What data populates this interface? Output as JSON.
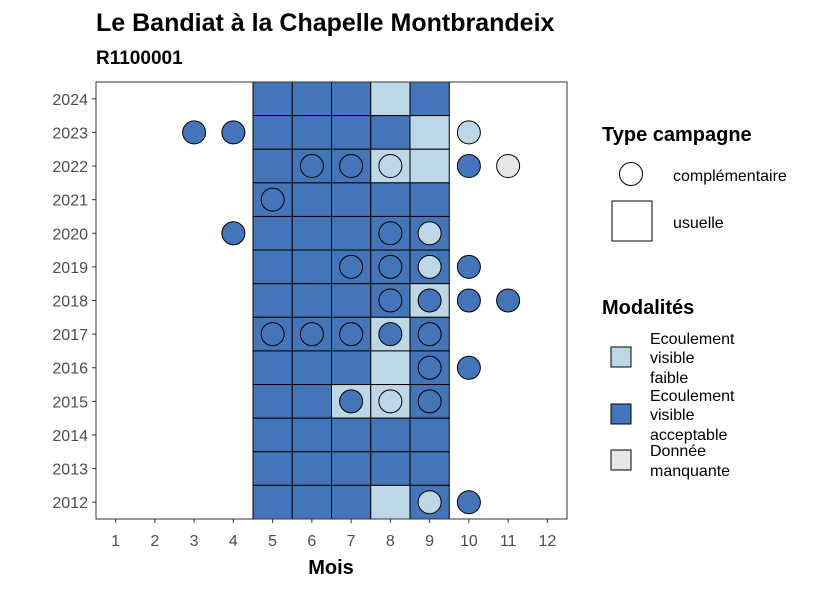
{
  "chart_data": {
    "type": "heatmap",
    "title": "Le Bandiat à la Chapelle Montbrandeix",
    "subtitle": "R1100001",
    "xlabel": "Mois",
    "x_ticks": [
      "1",
      "2",
      "3",
      "4",
      "5",
      "6",
      "7",
      "8",
      "9",
      "10",
      "11",
      "12"
    ],
    "y_ticks": [
      "2012",
      "2013",
      "2014",
      "2015",
      "2016",
      "2017",
      "2018",
      "2019",
      "2020",
      "2021",
      "2022",
      "2023",
      "2024"
    ],
    "xlim": [
      0.5,
      12.5
    ],
    "ylim": [
      2011.5,
      2024.5
    ],
    "colors": {
      "faible": "#bdd7e7",
      "acceptable": "#4575b9",
      "manquante": "#e6e6e6",
      "border": "#000000"
    },
    "legend": {
      "type_title": "Type campagne",
      "type_items": [
        {
          "shape": "circle",
          "label": "complémentaire"
        },
        {
          "shape": "square",
          "label": "usuelle"
        }
      ],
      "modalites_title": "Modalités",
      "modalites_items": [
        {
          "key": "faible",
          "lines": [
            "Ecoulement",
            "visible",
            "faible"
          ]
        },
        {
          "key": "acceptable",
          "lines": [
            "Ecoulement",
            "visible",
            "acceptable"
          ]
        },
        {
          "key": "manquante",
          "lines": [
            "Donnée",
            "manquante"
          ]
        }
      ]
    },
    "usuelle": [
      {
        "year": 2024,
        "month": 5,
        "value": "acceptable"
      },
      {
        "year": 2024,
        "month": 6,
        "value": "acceptable"
      },
      {
        "year": 2024,
        "month": 7,
        "value": "acceptable"
      },
      {
        "year": 2024,
        "month": 8,
        "value": "faible"
      },
      {
        "year": 2024,
        "month": 9,
        "value": "acceptable"
      },
      {
        "year": 2023,
        "month": 5,
        "value": "acceptable"
      },
      {
        "year": 2023,
        "month": 6,
        "value": "acceptable"
      },
      {
        "year": 2023,
        "month": 7,
        "value": "acceptable"
      },
      {
        "year": 2023,
        "month": 8,
        "value": "acceptable"
      },
      {
        "year": 2023,
        "month": 9,
        "value": "faible"
      },
      {
        "year": 2022,
        "month": 5,
        "value": "acceptable"
      },
      {
        "year": 2022,
        "month": 6,
        "value": "acceptable"
      },
      {
        "year": 2022,
        "month": 7,
        "value": "acceptable"
      },
      {
        "year": 2022,
        "month": 8,
        "value": "faible"
      },
      {
        "year": 2022,
        "month": 9,
        "value": "faible"
      },
      {
        "year": 2021,
        "month": 5,
        "value": "acceptable"
      },
      {
        "year": 2021,
        "month": 6,
        "value": "acceptable"
      },
      {
        "year": 2021,
        "month": 7,
        "value": "acceptable"
      },
      {
        "year": 2021,
        "month": 8,
        "value": "acceptable"
      },
      {
        "year": 2021,
        "month": 9,
        "value": "acceptable"
      },
      {
        "year": 2020,
        "month": 5,
        "value": "acceptable"
      },
      {
        "year": 2020,
        "month": 6,
        "value": "acceptable"
      },
      {
        "year": 2020,
        "month": 7,
        "value": "acceptable"
      },
      {
        "year": 2020,
        "month": 8,
        "value": "acceptable"
      },
      {
        "year": 2020,
        "month": 9,
        "value": "acceptable"
      },
      {
        "year": 2019,
        "month": 5,
        "value": "acceptable"
      },
      {
        "year": 2019,
        "month": 6,
        "value": "acceptable"
      },
      {
        "year": 2019,
        "month": 7,
        "value": "acceptable"
      },
      {
        "year": 2019,
        "month": 8,
        "value": "acceptable"
      },
      {
        "year": 2019,
        "month": 9,
        "value": "acceptable"
      },
      {
        "year": 2018,
        "month": 5,
        "value": "acceptable"
      },
      {
        "year": 2018,
        "month": 6,
        "value": "acceptable"
      },
      {
        "year": 2018,
        "month": 7,
        "value": "acceptable"
      },
      {
        "year": 2018,
        "month": 8,
        "value": "acceptable"
      },
      {
        "year": 2018,
        "month": 9,
        "value": "faible"
      },
      {
        "year": 2017,
        "month": 5,
        "value": "acceptable"
      },
      {
        "year": 2017,
        "month": 6,
        "value": "acceptable"
      },
      {
        "year": 2017,
        "month": 7,
        "value": "acceptable"
      },
      {
        "year": 2017,
        "month": 8,
        "value": "faible"
      },
      {
        "year": 2017,
        "month": 9,
        "value": "acceptable"
      },
      {
        "year": 2016,
        "month": 5,
        "value": "acceptable"
      },
      {
        "year": 2016,
        "month": 6,
        "value": "acceptable"
      },
      {
        "year": 2016,
        "month": 7,
        "value": "acceptable"
      },
      {
        "year": 2016,
        "month": 8,
        "value": "faible"
      },
      {
        "year": 2016,
        "month": 9,
        "value": "acceptable"
      },
      {
        "year": 2015,
        "month": 5,
        "value": "acceptable"
      },
      {
        "year": 2015,
        "month": 6,
        "value": "acceptable"
      },
      {
        "year": 2015,
        "month": 7,
        "value": "faible"
      },
      {
        "year": 2015,
        "month": 8,
        "value": "faible"
      },
      {
        "year": 2015,
        "month": 9,
        "value": "acceptable"
      },
      {
        "year": 2014,
        "month": 5,
        "value": "acceptable"
      },
      {
        "year": 2014,
        "month": 6,
        "value": "acceptable"
      },
      {
        "year": 2014,
        "month": 7,
        "value": "acceptable"
      },
      {
        "year": 2014,
        "month": 8,
        "value": "acceptable"
      },
      {
        "year": 2014,
        "month": 9,
        "value": "acceptable"
      },
      {
        "year": 2013,
        "month": 5,
        "value": "acceptable"
      },
      {
        "year": 2013,
        "month": 6,
        "value": "acceptable"
      },
      {
        "year": 2013,
        "month": 7,
        "value": "acceptable"
      },
      {
        "year": 2013,
        "month": 8,
        "value": "acceptable"
      },
      {
        "year": 2013,
        "month": 9,
        "value": "acceptable"
      },
      {
        "year": 2012,
        "month": 5,
        "value": "acceptable"
      },
      {
        "year": 2012,
        "month": 6,
        "value": "acceptable"
      },
      {
        "year": 2012,
        "month": 7,
        "value": "acceptable"
      },
      {
        "year": 2012,
        "month": 8,
        "value": "faible"
      },
      {
        "year": 2012,
        "month": 9,
        "value": "acceptable"
      }
    ],
    "complementaire": [
      {
        "year": 2023,
        "month": 3,
        "value": "acceptable"
      },
      {
        "year": 2023,
        "month": 4,
        "value": "acceptable"
      },
      {
        "year": 2023,
        "month": 10,
        "value": "faible"
      },
      {
        "year": 2022,
        "month": 6,
        "value": "acceptable"
      },
      {
        "year": 2022,
        "month": 7,
        "value": "acceptable"
      },
      {
        "year": 2022,
        "month": 8,
        "value": "faible"
      },
      {
        "year": 2022,
        "month": 10,
        "value": "acceptable"
      },
      {
        "year": 2022,
        "month": 11,
        "value": "manquante"
      },
      {
        "year": 2021,
        "month": 5,
        "value": "acceptable"
      },
      {
        "year": 2020,
        "month": 4,
        "value": "acceptable"
      },
      {
        "year": 2020,
        "month": 8,
        "value": "acceptable"
      },
      {
        "year": 2020,
        "month": 9,
        "value": "faible"
      },
      {
        "year": 2019,
        "month": 7,
        "value": "acceptable"
      },
      {
        "year": 2019,
        "month": 8,
        "value": "acceptable"
      },
      {
        "year": 2019,
        "month": 9,
        "value": "faible"
      },
      {
        "year": 2019,
        "month": 10,
        "value": "acceptable"
      },
      {
        "year": 2018,
        "month": 8,
        "value": "acceptable"
      },
      {
        "year": 2018,
        "month": 9,
        "value": "acceptable"
      },
      {
        "year": 2018,
        "month": 10,
        "value": "acceptable"
      },
      {
        "year": 2018,
        "month": 11,
        "value": "acceptable"
      },
      {
        "year": 2017,
        "month": 5,
        "value": "acceptable"
      },
      {
        "year": 2017,
        "month": 6,
        "value": "acceptable"
      },
      {
        "year": 2017,
        "month": 7,
        "value": "acceptable"
      },
      {
        "year": 2017,
        "month": 8,
        "value": "acceptable"
      },
      {
        "year": 2017,
        "month": 9,
        "value": "acceptable"
      },
      {
        "year": 2016,
        "month": 9,
        "value": "acceptable"
      },
      {
        "year": 2016,
        "month": 10,
        "value": "acceptable"
      },
      {
        "year": 2015,
        "month": 7,
        "value": "acceptable"
      },
      {
        "year": 2015,
        "month": 8,
        "value": "faible"
      },
      {
        "year": 2015,
        "month": 9,
        "value": "acceptable"
      },
      {
        "year": 2012,
        "month": 9,
        "value": "faible"
      },
      {
        "year": 2012,
        "month": 10,
        "value": "acceptable"
      }
    ]
  }
}
